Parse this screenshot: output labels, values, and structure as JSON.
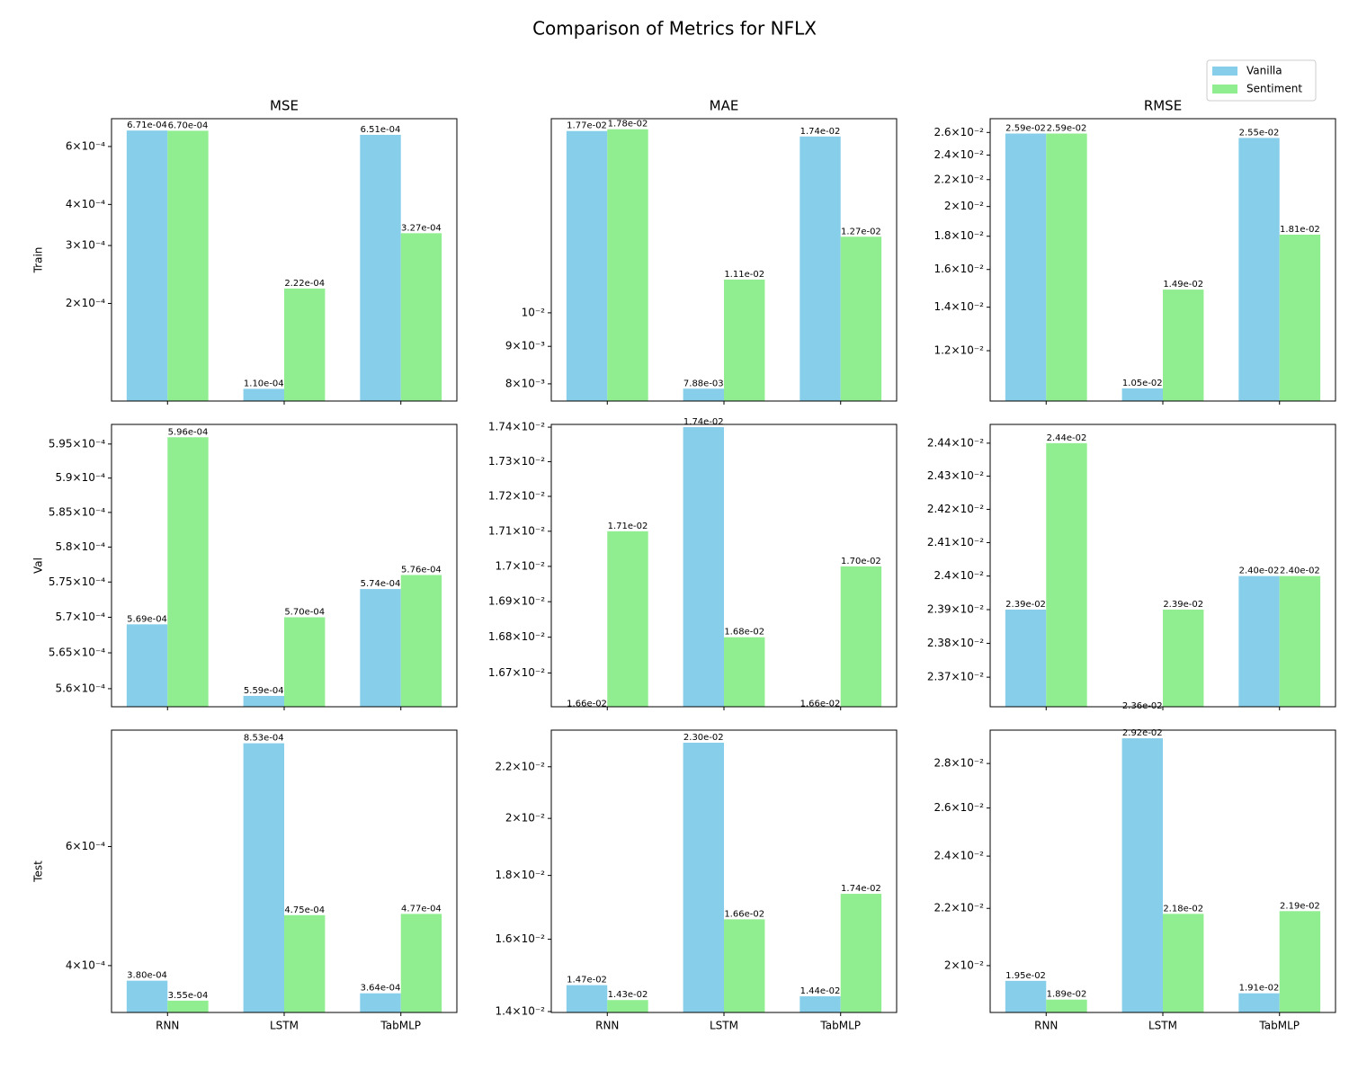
{
  "title": "Comparison of Metrics for NFLX",
  "chart_data": [
    {
      "type": "bar",
      "title": "MSE",
      "ylabel": "Train",
      "yscale": "log",
      "ylim": [
        0.000101,
        0.000729
      ],
      "yticks": [
        {
          "value": 0.0002,
          "label": "2×10⁻⁴"
        },
        {
          "value": 0.0003,
          "label": "3×10⁻⁴"
        },
        {
          "value": 0.0004,
          "label": "4×10⁻⁴"
        },
        {
          "value": 0.0006,
          "label": "6×10⁻⁴"
        }
      ],
      "series": [
        {
          "name": "Vanilla",
          "color": "#87ceeb",
          "values": [
            0.000671,
            0.00011,
            0.000651
          ],
          "value_labels": [
            "6.71e-04",
            "1.10e-04",
            "6.51e-04"
          ]
        },
        {
          "name": "Sentiment",
          "color": "#90ee90",
          "values": [
            0.00067,
            0.000222,
            0.000327
          ],
          "value_labels": [
            "6.70e-04",
            "2.22e-04",
            "3.27e-04"
          ]
        }
      ]
    },
    {
      "type": "bar",
      "title": "MAE",
      "yscale": "log",
      "ylim": [
        0.00758,
        0.0184
      ],
      "yticks": [
        {
          "value": 0.008,
          "label": "8×10⁻³"
        },
        {
          "value": 0.009,
          "label": "9×10⁻³"
        },
        {
          "value": 0.01,
          "label": "10⁻²"
        }
      ],
      "series": [
        {
          "name": "Vanilla",
          "color": "#87ceeb",
          "values": [
            0.0177,
            0.00788,
            0.0174
          ],
          "value_labels": [
            "1.77e-02",
            "7.88e-03",
            "1.74e-02"
          ]
        },
        {
          "name": "Sentiment",
          "color": "#90ee90",
          "values": [
            0.0178,
            0.0111,
            0.0127
          ],
          "value_labels": [
            "1.78e-02",
            "1.11e-02",
            "1.27e-02"
          ]
        }
      ]
    },
    {
      "type": "bar",
      "title": "RMSE",
      "yscale": "log",
      "ylim": [
        0.01004,
        0.0273
      ],
      "yticks": [
        {
          "value": 0.012,
          "label": "1.2×10⁻²"
        },
        {
          "value": 0.014,
          "label": "1.4×10⁻²"
        },
        {
          "value": 0.016,
          "label": "1.6×10⁻²"
        },
        {
          "value": 0.018,
          "label": "1.8×10⁻²"
        },
        {
          "value": 0.02,
          "label": "2×10⁻²"
        },
        {
          "value": 0.022,
          "label": "2.2×10⁻²"
        },
        {
          "value": 0.024,
          "label": "2.4×10⁻²"
        },
        {
          "value": 0.026,
          "label": "2.6×10⁻²"
        }
      ],
      "series": [
        {
          "name": "Vanilla",
          "color": "#87ceeb",
          "values": [
            0.0259,
            0.0105,
            0.0255
          ],
          "value_labels": [
            "2.59e-02",
            "1.05e-02",
            "2.55e-02"
          ]
        },
        {
          "name": "Sentiment",
          "color": "#90ee90",
          "values": [
            0.0259,
            0.0149,
            0.0181
          ],
          "value_labels": [
            "2.59e-02",
            "1.49e-02",
            "1.81e-02"
          ]
        }
      ]
    },
    {
      "type": "bar",
      "ylabel": "Val",
      "yscale": "log",
      "ylim": [
        0.0005575,
        0.0005979
      ],
      "yticks": [
        {
          "value": 0.00056,
          "label": "5.6×10⁻⁴"
        },
        {
          "value": 0.000565,
          "label": "5.65×10⁻⁴"
        },
        {
          "value": 0.00057,
          "label": "5.7×10⁻⁴"
        },
        {
          "value": 0.000575,
          "label": "5.75×10⁻⁴"
        },
        {
          "value": 0.00058,
          "label": "5.8×10⁻⁴"
        },
        {
          "value": 0.000585,
          "label": "5.85×10⁻⁴"
        },
        {
          "value": 0.00059,
          "label": "5.9×10⁻⁴"
        },
        {
          "value": 0.000595,
          "label": "5.95×10⁻⁴"
        }
      ],
      "series": [
        {
          "name": "Vanilla",
          "color": "#87ceeb",
          "values": [
            0.000569,
            0.000559,
            0.000574
          ],
          "value_labels": [
            "5.69e-04",
            "5.59e-04",
            "5.74e-04"
          ]
        },
        {
          "name": "Sentiment",
          "color": "#90ee90",
          "values": [
            0.000596,
            0.00057,
            0.000576
          ],
          "value_labels": [
            "5.96e-04",
            "5.70e-04",
            "5.76e-04"
          ]
        }
      ]
    },
    {
      "type": "bar",
      "yscale": "log",
      "ylim": [
        0.016606,
        0.017408
      ],
      "yticks": [
        {
          "value": 0.0167,
          "label": "1.67×10⁻²"
        },
        {
          "value": 0.0168,
          "label": "1.68×10⁻²"
        },
        {
          "value": 0.0169,
          "label": "1.69×10⁻²"
        },
        {
          "value": 0.017,
          "label": "1.7×10⁻²"
        },
        {
          "value": 0.0171,
          "label": "1.71×10⁻²"
        },
        {
          "value": 0.0172,
          "label": "1.72×10⁻²"
        },
        {
          "value": 0.0173,
          "label": "1.73×10⁻²"
        },
        {
          "value": 0.0174,
          "label": "1.74×10⁻²"
        }
      ],
      "series": [
        {
          "name": "Vanilla",
          "color": "#87ceeb",
          "values": [
            0.0166,
            0.0174,
            0.0166
          ],
          "value_labels": [
            "1.66e-02",
            "1.74e-02",
            "1.66e-02"
          ]
        },
        {
          "name": "Sentiment",
          "color": "#90ee90",
          "values": [
            0.0171,
            0.0168,
            0.017
          ],
          "value_labels": [
            "1.71e-02",
            "1.68e-02",
            "1.70e-02"
          ]
        }
      ]
    },
    {
      "type": "bar",
      "yscale": "log",
      "ylim": [
        0.023613,
        0.024457
      ],
      "yticks": [
        {
          "value": 0.0237,
          "label": "2.37×10⁻²"
        },
        {
          "value": 0.0238,
          "label": "2.38×10⁻²"
        },
        {
          "value": 0.0239,
          "label": "2.39×10⁻²"
        },
        {
          "value": 0.024,
          "label": "2.4×10⁻²"
        },
        {
          "value": 0.0241,
          "label": "2.41×10⁻²"
        },
        {
          "value": 0.0242,
          "label": "2.42×10⁻²"
        },
        {
          "value": 0.0243,
          "label": "2.43×10⁻²"
        },
        {
          "value": 0.0244,
          "label": "2.44×10⁻²"
        }
      ],
      "series": [
        {
          "name": "Vanilla",
          "color": "#87ceeb",
          "values": [
            0.0239,
            0.0236,
            0.024
          ],
          "value_labels": [
            "2.39e-02",
            "2.36e-02",
            "2.40e-02"
          ]
        },
        {
          "name": "Sentiment",
          "color": "#90ee90",
          "values": [
            0.0244,
            0.0239,
            0.024
          ],
          "value_labels": [
            "2.44e-02",
            "2.39e-02",
            "2.40e-02"
          ]
        }
      ]
    },
    {
      "type": "bar",
      "ylabel": "Test",
      "yscale": "log",
      "ylim": [
        0.000341,
        0.000892
      ],
      "categories": [
        "RNN",
        "LSTM",
        "TabMLP"
      ],
      "yticks": [
        {
          "value": 0.0004,
          "label": "4×10⁻⁴"
        },
        {
          "value": 0.0006,
          "label": "6×10⁻⁴"
        }
      ],
      "series": [
        {
          "name": "Vanilla",
          "color": "#87ceeb",
          "values": [
            0.00038,
            0.000853,
            0.000364
          ],
          "value_labels": [
            "3.80e-04",
            "8.53e-04",
            "3.64e-04"
          ]
        },
        {
          "name": "Sentiment",
          "color": "#90ee90",
          "values": [
            0.000355,
            0.000475,
            0.000477
          ],
          "value_labels": [
            "3.55e-04",
            "4.75e-04",
            "4.77e-04"
          ]
        }
      ]
    },
    {
      "type": "bar",
      "yscale": "log",
      "ylim": [
        0.013977,
        0.02354
      ],
      "categories": [
        "RNN",
        "LSTM",
        "TabMLP"
      ],
      "yticks": [
        {
          "value": 0.014,
          "label": "1.4×10⁻²"
        },
        {
          "value": 0.016,
          "label": "1.6×10⁻²"
        },
        {
          "value": 0.018,
          "label": "1.8×10⁻²"
        },
        {
          "value": 0.02,
          "label": "2×10⁻²"
        },
        {
          "value": 0.022,
          "label": "2.2×10⁻²"
        }
      ],
      "series": [
        {
          "name": "Vanilla",
          "color": "#87ceeb",
          "values": [
            0.0147,
            0.023,
            0.0144
          ],
          "value_labels": [
            "1.47e-02",
            "2.30e-02",
            "1.44e-02"
          ]
        },
        {
          "name": "Sentiment",
          "color": "#90ee90",
          "values": [
            0.0143,
            0.0166,
            0.0174
          ],
          "value_labels": [
            "1.43e-02",
            "1.66e-02",
            "1.74e-02"
          ]
        }
      ]
    },
    {
      "type": "bar",
      "yscale": "log",
      "ylim": [
        0.0185,
        0.0296
      ],
      "categories": [
        "RNN",
        "LSTM",
        "TabMLP"
      ],
      "yticks": [
        {
          "value": 0.02,
          "label": "2×10⁻²"
        },
        {
          "value": 0.022,
          "label": "2.2×10⁻²"
        },
        {
          "value": 0.024,
          "label": "2.4×10⁻²"
        },
        {
          "value": 0.026,
          "label": "2.6×10⁻²"
        },
        {
          "value": 0.028,
          "label": "2.8×10⁻²"
        }
      ],
      "series": [
        {
          "name": "Vanilla",
          "color": "#87ceeb",
          "values": [
            0.0195,
            0.0292,
            0.0191
          ],
          "value_labels": [
            "1.95e-02",
            "2.92e-02",
            "1.91e-02"
          ]
        },
        {
          "name": "Sentiment",
          "color": "#90ee90",
          "values": [
            0.0189,
            0.0218,
            0.0219
          ],
          "value_labels": [
            "1.89e-02",
            "2.18e-02",
            "2.19e-02"
          ]
        }
      ]
    }
  ]
}
